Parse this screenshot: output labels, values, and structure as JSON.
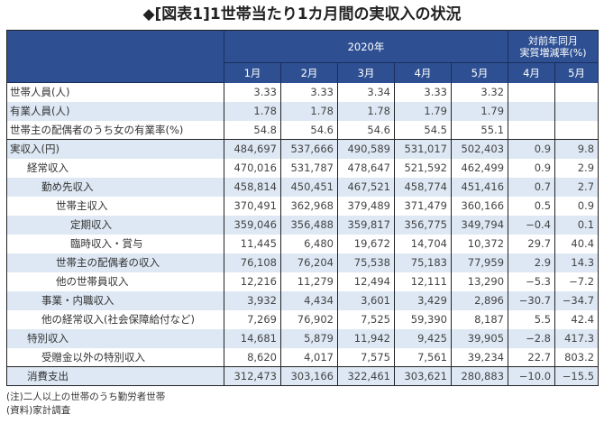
{
  "title": "◆[図表1]1世帯当たり1カ月間の実収入の状況",
  "header": {
    "year_group": "2020年",
    "yoy_group_line1": "対前年同月",
    "yoy_group_line2": "実質増減率(%)",
    "months": [
      "1月",
      "2月",
      "3月",
      "4月",
      "5月"
    ],
    "yoy_months": [
      "4月",
      "5月"
    ]
  },
  "colors": {
    "header_bg": "#2e5093",
    "alt_row_bg": "#dde8f4"
  },
  "rows": [
    {
      "label": "世帯人員(人)",
      "indent": 0,
      "values": [
        "3.33",
        "3.33",
        "3.34",
        "3.33",
        "3.32"
      ],
      "yoy": [
        "",
        ""
      ]
    },
    {
      "label": "有業人員(人)",
      "indent": 0,
      "values": [
        "1.78",
        "1.78",
        "1.78",
        "1.79",
        "1.79"
      ],
      "yoy": [
        "",
        ""
      ]
    },
    {
      "label": "世帯主の配偶者のうち女の有業率(%)",
      "indent": 0,
      "values": [
        "54.8",
        "54.6",
        "54.6",
        "54.5",
        "55.1"
      ],
      "yoy": [
        "",
        ""
      ]
    },
    {
      "label": "実収入(円)",
      "indent": 0,
      "values": [
        "484,697",
        "537,666",
        "490,589",
        "531,017",
        "502,403"
      ],
      "yoy": [
        "0.9",
        "9.8"
      ]
    },
    {
      "label": "経常収入",
      "indent": 1,
      "values": [
        "470,016",
        "531,787",
        "478,647",
        "521,592",
        "462,499"
      ],
      "yoy": [
        "0.9",
        "2.9"
      ]
    },
    {
      "label": "勤め先収入",
      "indent": 2,
      "values": [
        "458,814",
        "450,451",
        "467,521",
        "458,774",
        "451,416"
      ],
      "yoy": [
        "0.7",
        "2.7"
      ]
    },
    {
      "label": "世帯主収入",
      "indent": 3,
      "values": [
        "370,491",
        "362,968",
        "379,489",
        "371,479",
        "360,166"
      ],
      "yoy": [
        "0.5",
        "0.9"
      ]
    },
    {
      "label": "定期収入",
      "indent": 4,
      "values": [
        "359,046",
        "356,488",
        "359,817",
        "356,775",
        "349,794"
      ],
      "yoy": [
        "−0.4",
        "0.1"
      ]
    },
    {
      "label": "臨時収入・賞与",
      "indent": 4,
      "values": [
        "11,445",
        "6,480",
        "19,672",
        "14,704",
        "10,372"
      ],
      "yoy": [
        "29.7",
        "40.4"
      ]
    },
    {
      "label": "世帯主の配偶者の収入",
      "indent": 3,
      "values": [
        "76,108",
        "76,204",
        "75,538",
        "75,183",
        "77,959"
      ],
      "yoy": [
        "2.9",
        "14.3"
      ]
    },
    {
      "label": "他の世帯員収入",
      "indent": 3,
      "values": [
        "12,216",
        "11,279",
        "12,494",
        "12,111",
        "13,290"
      ],
      "yoy": [
        "−5.3",
        "−7.2"
      ]
    },
    {
      "label": "事業・内職収入",
      "indent": 2,
      "values": [
        "3,932",
        "4,434",
        "3,601",
        "3,429",
        "2,896"
      ],
      "yoy": [
        "−30.7",
        "−34.7"
      ]
    },
    {
      "label": "他の経常収入(社会保障給付など)",
      "indent": 2,
      "values": [
        "7,269",
        "76,902",
        "7,525",
        "59,390",
        "8,187"
      ],
      "yoy": [
        "5.5",
        "42.4"
      ]
    },
    {
      "label": "特別収入",
      "indent": 1,
      "values": [
        "14,681",
        "5,879",
        "11,942",
        "9,425",
        "39,905"
      ],
      "yoy": [
        "−2.8",
        "417.3"
      ]
    },
    {
      "label": "受贈金以外の特別収入",
      "indent": 2,
      "values": [
        "8,620",
        "4,017",
        "7,575",
        "7,561",
        "39,234"
      ],
      "yoy": [
        "22.7",
        "803.2"
      ]
    },
    {
      "label": "消費支出",
      "indent": 1,
      "values": [
        "312,473",
        "303,166",
        "322,461",
        "303,621",
        "280,883"
      ],
      "yoy": [
        "−10.0",
        "−15.5"
      ]
    }
  ],
  "notes": [
    "(注)二人以上の世帯のうち勤労者世帯",
    "(資料)家計調査"
  ]
}
